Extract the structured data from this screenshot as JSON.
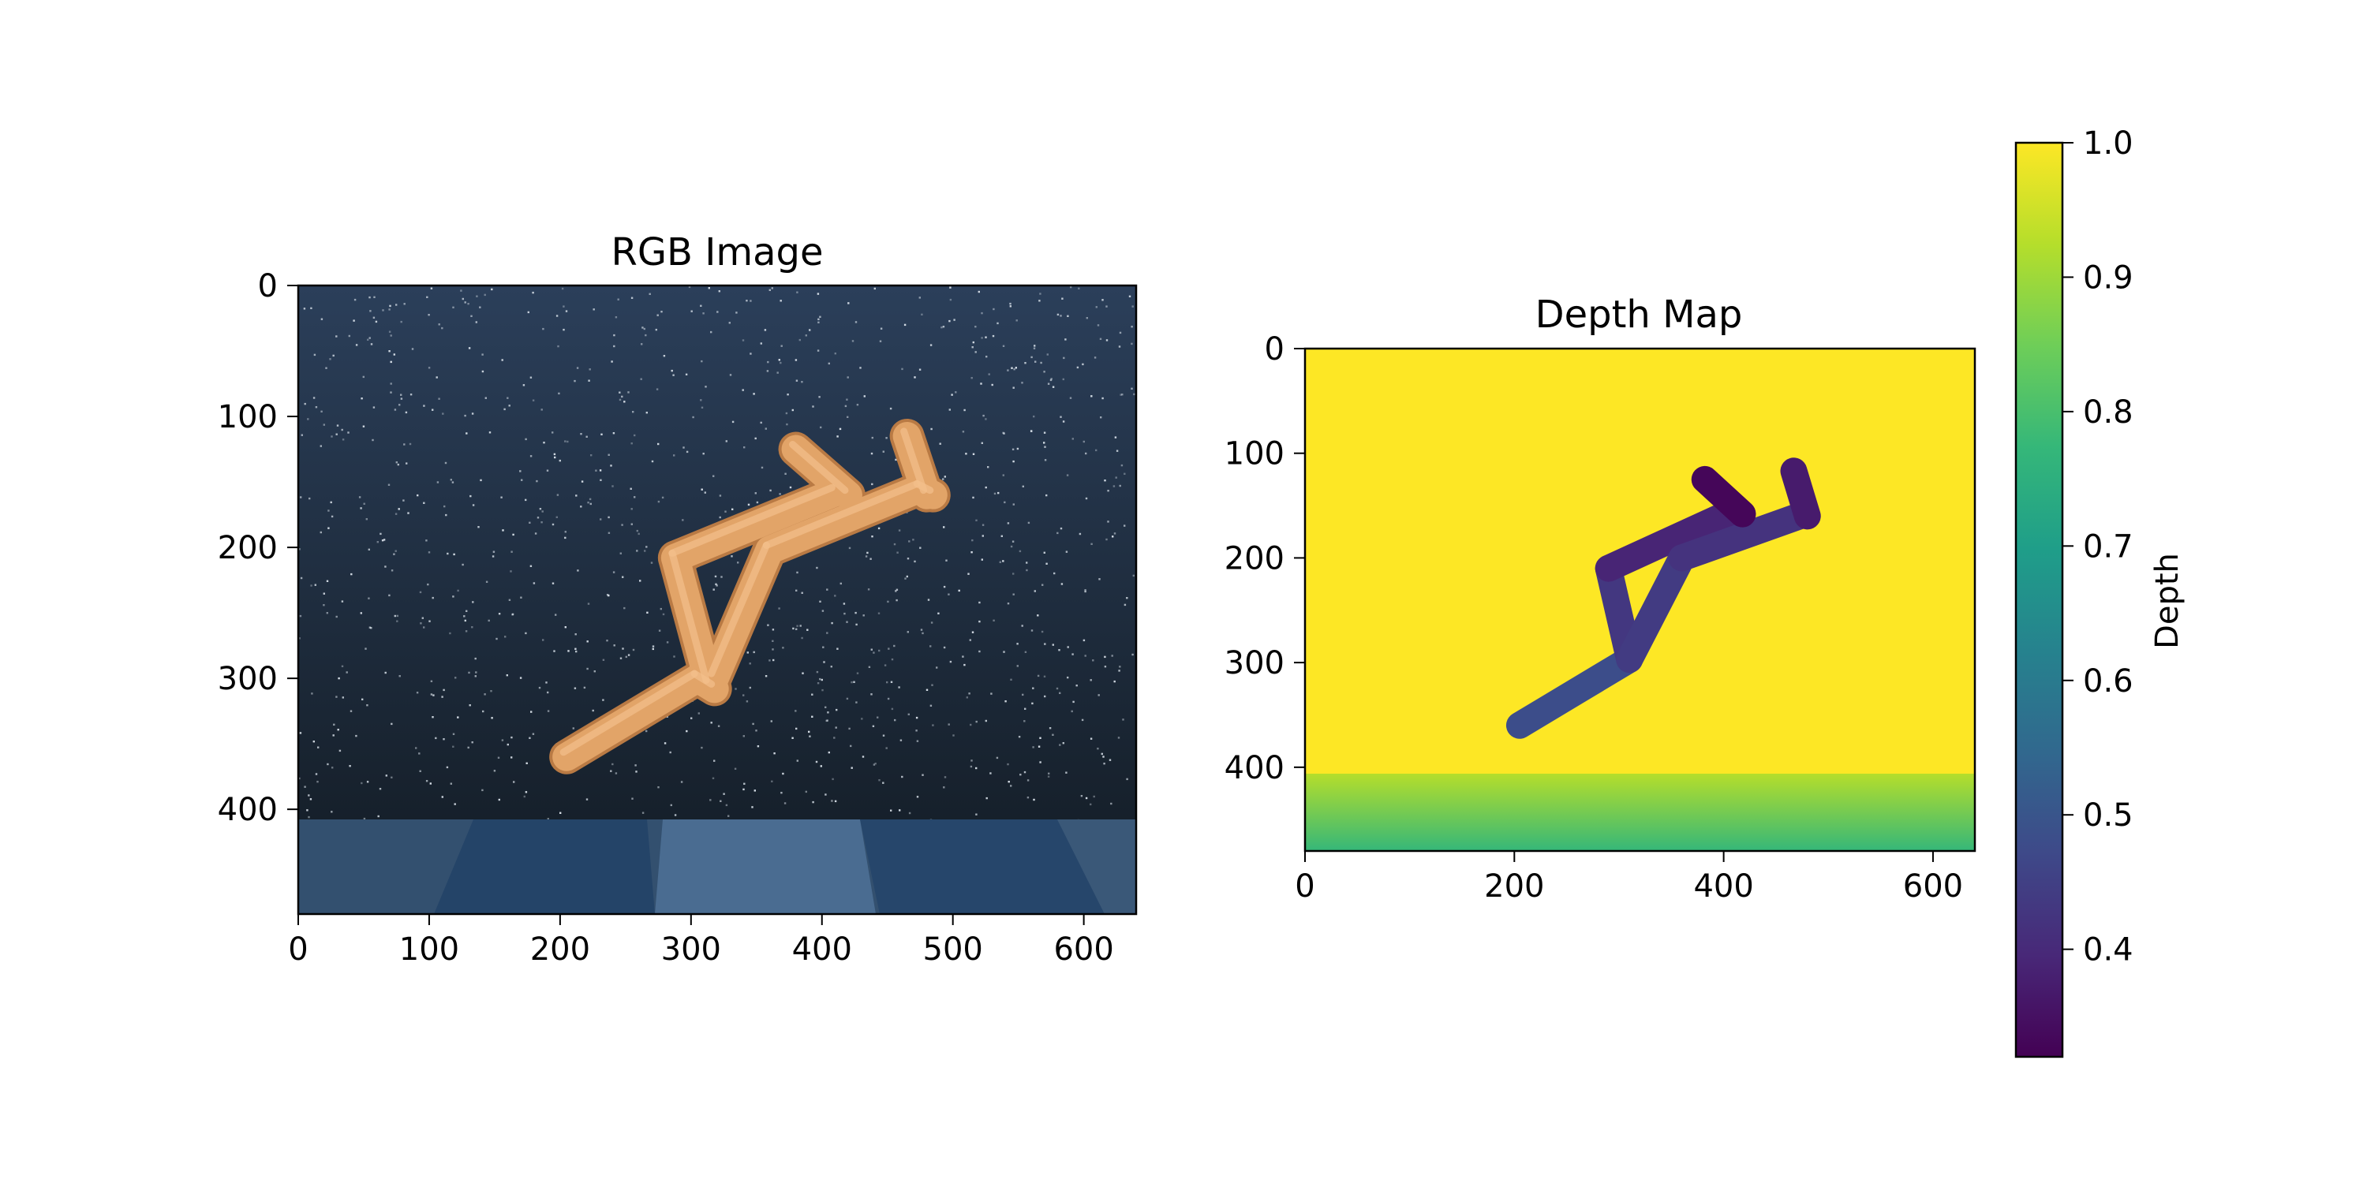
{
  "chart_data": [
    {
      "type": "image",
      "title": "RGB Image",
      "xlabel": "",
      "ylabel": "",
      "xlim": [
        0,
        640
      ],
      "ylim": [
        480,
        0
      ],
      "x_ticks": [
        "0",
        "100",
        "200",
        "300",
        "400",
        "500",
        "600"
      ],
      "y_ticks": [
        "0",
        "100",
        "200",
        "300",
        "400"
      ],
      "sky_gradient": [
        "#2b3f5a",
        "#16202b"
      ],
      "floor_color": "#2a4a6e",
      "figure_color": "#e2a468",
      "horizon_y": 408,
      "body_segments": [
        {
          "x1": 205,
          "y1": 360,
          "x2": 305,
          "y2": 300
        },
        {
          "x1": 305,
          "y1": 300,
          "x2": 318,
          "y2": 308
        },
        {
          "x1": 314,
          "y1": 305,
          "x2": 288,
          "y2": 208
        },
        {
          "x1": 288,
          "y1": 208,
          "x2": 410,
          "y2": 158
        },
        {
          "x1": 318,
          "y1": 300,
          "x2": 360,
          "y2": 202
        },
        {
          "x1": 360,
          "y1": 202,
          "x2": 475,
          "y2": 155
        },
        {
          "x1": 475,
          "y1": 155,
          "x2": 485,
          "y2": 160
        },
        {
          "x1": 380,
          "y1": 125,
          "x2": 420,
          "y2": 160
        },
        {
          "x1": 465,
          "y1": 115,
          "x2": 480,
          "y2": 160
        }
      ]
    },
    {
      "type": "heatmap",
      "title": "Depth Map",
      "xlabel": "",
      "ylabel": "",
      "xlim": [
        0,
        640
      ],
      "ylim": [
        480,
        0
      ],
      "x_ticks": [
        "0",
        "200",
        "400",
        "600"
      ],
      "y_ticks": [
        "0",
        "100",
        "200",
        "300",
        "400"
      ],
      "background_depth": 1.0,
      "floor_depth_range": [
        0.9,
        0.78
      ],
      "horizon_y": 406,
      "body_segments": [
        {
          "x1": 205,
          "y1": 360,
          "x2": 310,
          "y2": 297,
          "depth": 0.48
        },
        {
          "x1": 310,
          "y1": 297,
          "x2": 290,
          "y2": 210,
          "depth": 0.43
        },
        {
          "x1": 290,
          "y1": 210,
          "x2": 410,
          "y2": 155,
          "depth": 0.39
        },
        {
          "x1": 310,
          "y1": 297,
          "x2": 360,
          "y2": 200,
          "depth": 0.44
        },
        {
          "x1": 360,
          "y1": 200,
          "x2": 478,
          "y2": 158,
          "depth": 0.42
        },
        {
          "x1": 382,
          "y1": 125,
          "x2": 418,
          "y2": 158,
          "depth": 0.33
        },
        {
          "x1": 467,
          "y1": 117,
          "x2": 480,
          "y2": 160,
          "depth": 0.37
        }
      ]
    }
  ],
  "colorbar": {
    "label": "Depth",
    "range": [
      0.32,
      1.0
    ],
    "ticks": [
      {
        "value": 0.4,
        "label": "0.4"
      },
      {
        "value": 0.5,
        "label": "0.5"
      },
      {
        "value": 0.6,
        "label": "0.6"
      },
      {
        "value": 0.7,
        "label": "0.7"
      },
      {
        "value": 0.8,
        "label": "0.8"
      },
      {
        "value": 0.9,
        "label": "0.9"
      },
      {
        "value": 1.0,
        "label": "1.0"
      }
    ],
    "colormap": [
      "#440154",
      "#482878",
      "#3e4989",
      "#31688e",
      "#26828e",
      "#1f9e89",
      "#35b779",
      "#6ece58",
      "#b5de2b",
      "#fde725"
    ]
  }
}
